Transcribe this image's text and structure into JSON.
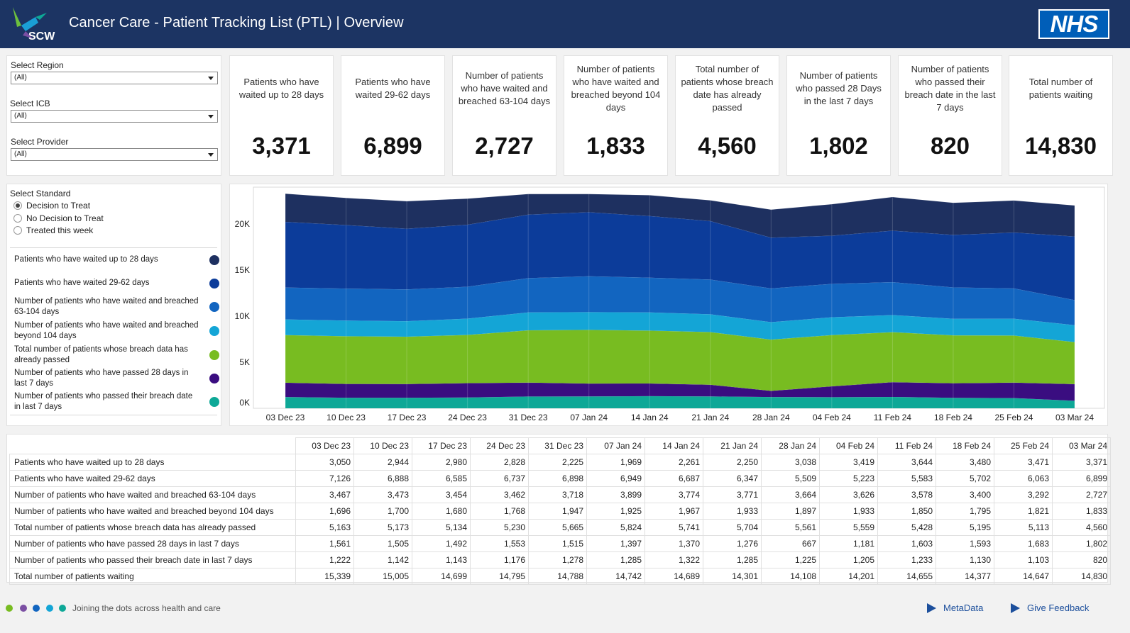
{
  "header": {
    "logo_text": "SCW",
    "title": "Cancer Care - Patient Tracking List (PTL) | Overview",
    "nhs_logo": "NHS",
    "colors": {
      "header_bg": "#1c3463",
      "nhs_blue": "#005eb8"
    }
  },
  "filters": {
    "region_label": "Select Region",
    "region_value": "(All)",
    "icb_label": "Select ICB",
    "icb_value": "(All)",
    "provider_label": "Select Provider",
    "provider_value": "(All)"
  },
  "kpis": [
    {
      "label": "Patients who have waited up to 28 days",
      "value": "3,371"
    },
    {
      "label": "Patients who have waited 29-62 days",
      "value": "6,899"
    },
    {
      "label": "Number of patients who have waited and breached 63-104 days",
      "value": "2,727"
    },
    {
      "label": "Number of patients who have waited and breached beyond 104 days",
      "value": "1,833"
    },
    {
      "label": "Total number of patients whose breach date has already passed",
      "value": "4,560"
    },
    {
      "label": "Number of patients who passed 28 Days in the last 7 days",
      "value": "1,802"
    },
    {
      "label": "Number of patients who passed their breach date in the last 7 days",
      "value": "820"
    },
    {
      "label": "Total number of patients waiting",
      "value": "14,830"
    }
  ],
  "standard": {
    "label": "Select Standard",
    "options": [
      {
        "label": "Decision to Treat",
        "selected": true
      },
      {
        "label": "No Decision to Treat",
        "selected": false
      },
      {
        "label": "Treated this week",
        "selected": false
      }
    ]
  },
  "legend": [
    {
      "label": "Patients who have waited up to 28 days",
      "color": "#1e3060"
    },
    {
      "label": "Patients who have waited 29-62 days",
      "color": "#0c3c9a"
    },
    {
      "label": "Number of patients who have waited and breached 63-104 days",
      "color": "#1265c0"
    },
    {
      "label": "Number of patients who have waited and breached beyond 104 days",
      "color": "#14a5d6"
    },
    {
      "label": "Total number of patients whose breach data has already passed",
      "color": "#78bc21"
    },
    {
      "label": "Number of patients who have passed 28 days in last 7 days",
      "color": "#3a0d80"
    },
    {
      "label": "Number of patients who passed their breach date in last 7 days",
      "color": "#0ea897"
    }
  ],
  "chart_data": {
    "type": "area",
    "stacked": true,
    "x": [
      "03 Dec 23",
      "10 Dec 23",
      "17 Dec 23",
      "24 Dec 23",
      "31 Dec 23",
      "07 Jan 24",
      "14 Jan 24",
      "21 Jan 24",
      "28 Jan 24",
      "04 Feb 24",
      "11 Feb 24",
      "18 Feb 24",
      "25 Feb 24",
      "03 Mar 24"
    ],
    "yticks": [
      "0K",
      "5K",
      "10K",
      "15K",
      "20K"
    ],
    "ylim": [
      0,
      24000
    ],
    "series": [
      {
        "name": "Number of patients who passed their breach date in last 7 days",
        "color": "#0ea897",
        "values": [
          1222,
          1142,
          1143,
          1176,
          1278,
          1285,
          1322,
          1285,
          1225,
          1205,
          1233,
          1130,
          1103,
          820
        ]
      },
      {
        "name": "Number of patients who have passed 28 days in last 7 days",
        "color": "#3a0d80",
        "values": [
          1561,
          1505,
          1492,
          1553,
          1515,
          1397,
          1370,
          1276,
          667,
          1181,
          1603,
          1593,
          1683,
          1802
        ]
      },
      {
        "name": "Total number of patients whose breach data has already passed",
        "color": "#78bc21",
        "values": [
          5163,
          5173,
          5134,
          5230,
          5665,
          5824,
          5741,
          5704,
          5561,
          5559,
          5428,
          5195,
          5113,
          4560
        ]
      },
      {
        "name": "Number of patients who have waited and breached beyond 104 days",
        "color": "#14a5d6",
        "values": [
          1696,
          1700,
          1680,
          1768,
          1947,
          1925,
          1967,
          1933,
          1897,
          1933,
          1850,
          1795,
          1821,
          1833
        ]
      },
      {
        "name": "Number of patients who have waited and breached 63-104 days",
        "color": "#1265c0",
        "values": [
          3467,
          3473,
          3454,
          3462,
          3718,
          3899,
          3774,
          3771,
          3664,
          3626,
          3578,
          3400,
          3292,
          2727
        ]
      },
      {
        "name": "Patients who have waited 29-62 days",
        "color": "#0c3c9a",
        "values": [
          7126,
          6888,
          6585,
          6737,
          6898,
          6949,
          6687,
          6347,
          5509,
          5223,
          5583,
          5702,
          6063,
          6899
        ]
      },
      {
        "name": "Patients who have waited up to 28 days",
        "color": "#1e3060",
        "values": [
          3050,
          2944,
          2980,
          2828,
          2225,
          1969,
          2261,
          2250,
          3038,
          3419,
          3644,
          3480,
          3471,
          3371
        ]
      }
    ]
  },
  "table": {
    "columns": [
      "03 Dec 23",
      "10 Dec 23",
      "17 Dec 23",
      "24 Dec 23",
      "31 Dec 23",
      "07 Jan 24",
      "14 Jan 24",
      "21 Jan 24",
      "28 Jan 24",
      "04 Feb 24",
      "11 Feb 24",
      "18 Feb 24",
      "25 Feb 24",
      "03 Mar 24"
    ],
    "rows": [
      {
        "label": "Patients who have waited up to 28 days",
        "values": [
          "3,050",
          "2,944",
          "2,980",
          "2,828",
          "2,225",
          "1,969",
          "2,261",
          "2,250",
          "3,038",
          "3,419",
          "3,644",
          "3,480",
          "3,471",
          "3,371"
        ]
      },
      {
        "label": "Patients who have waited 29-62 days",
        "values": [
          "7,126",
          "6,888",
          "6,585",
          "6,737",
          "6,898",
          "6,949",
          "6,687",
          "6,347",
          "5,509",
          "5,223",
          "5,583",
          "5,702",
          "6,063",
          "6,899"
        ]
      },
      {
        "label": "Number of patients who have waited and breached 63-104 days",
        "values": [
          "3,467",
          "3,473",
          "3,454",
          "3,462",
          "3,718",
          "3,899",
          "3,774",
          "3,771",
          "3,664",
          "3,626",
          "3,578",
          "3,400",
          "3,292",
          "2,727"
        ]
      },
      {
        "label": "Number of patients who have waited and breached beyond 104 days",
        "values": [
          "1,696",
          "1,700",
          "1,680",
          "1,768",
          "1,947",
          "1,925",
          "1,967",
          "1,933",
          "1,897",
          "1,933",
          "1,850",
          "1,795",
          "1,821",
          "1,833"
        ]
      },
      {
        "label": "Total number of patients whose breach data has already passed",
        "values": [
          "5,163",
          "5,173",
          "5,134",
          "5,230",
          "5,665",
          "5,824",
          "5,741",
          "5,704",
          "5,561",
          "5,559",
          "5,428",
          "5,195",
          "5,113",
          "4,560"
        ]
      },
      {
        "label": "Number of patients who have passed 28 days in last 7 days",
        "values": [
          "1,561",
          "1,505",
          "1,492",
          "1,553",
          "1,515",
          "1,397",
          "1,370",
          "1,276",
          "667",
          "1,181",
          "1,603",
          "1,593",
          "1,683",
          "1,802"
        ]
      },
      {
        "label": "Number of patients who passed their breach date in last 7 days",
        "values": [
          "1,222",
          "1,142",
          "1,143",
          "1,176",
          "1,278",
          "1,285",
          "1,322",
          "1,285",
          "1,225",
          "1,205",
          "1,233",
          "1,130",
          "1,103",
          "820"
        ]
      },
      {
        "label": "Total number of patients waiting",
        "values": [
          "15,339",
          "15,005",
          "14,699",
          "14,795",
          "14,788",
          "14,742",
          "14,689",
          "14,301",
          "14,108",
          "14,201",
          "14,655",
          "14,377",
          "14,647",
          "14,830"
        ]
      }
    ]
  },
  "footer": {
    "dot_colors": [
      "#78bc21",
      "#7b4fa3",
      "#1265c0",
      "#14a5d6",
      "#0ea897"
    ],
    "tagline": "Joining the dots across health and care",
    "metadata_link": "MetaData",
    "feedback_link": "Give Feedback"
  }
}
